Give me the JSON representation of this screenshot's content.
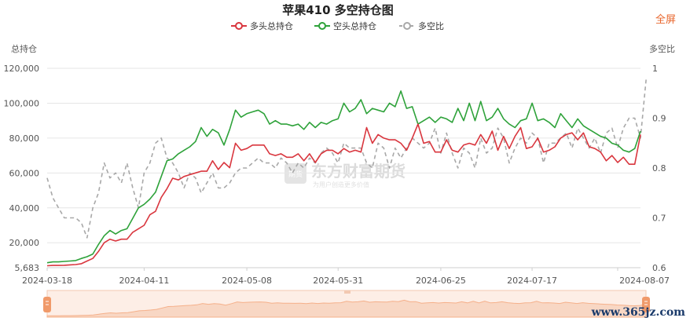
{
  "fullscreen_label": "全屏",
  "footer_url": "www.365jz.com",
  "watermark": {
    "main": "东方财富期货",
    "sub": "为用户创造更多价值",
    "logo": "期货"
  },
  "colors": {
    "long": "#d9363e",
    "short": "#2ea23a",
    "ratio": "#a8a8a8",
    "navigator": "#f5b08a"
  },
  "chart_data": {
    "type": "line",
    "title": "苹果410 多空持仓图",
    "legend": [
      "多头总持仓",
      "空头总持仓",
      "多空比"
    ],
    "y_left_label": "总持仓",
    "y_right_label": "多空比",
    "y_left_ticks": [
      "120,000",
      "100,000",
      "80,000",
      "60,000",
      "40,000",
      "20,000",
      "5,683"
    ],
    "y_left_tick_values": [
      120000,
      100000,
      80000,
      60000,
      40000,
      20000,
      5683
    ],
    "y_left_range": [
      5683,
      120000
    ],
    "y_right_ticks": [
      "1",
      "0.9",
      "0.8",
      "0.7",
      "0.6"
    ],
    "y_right_tick_values": [
      1,
      0.9,
      0.8,
      0.7,
      0.6
    ],
    "y_right_range": [
      0.6,
      1
    ],
    "x_ticks": [
      "2024-03-18",
      "2024-04-11",
      "2024-05-08",
      "2024-05-31",
      "2024-06-25",
      "2024-07-17",
      "2024-08-07"
    ],
    "x_tick_index": [
      0,
      17,
      35,
      51,
      69,
      85,
      100
    ],
    "series": [
      {
        "name": "多头总持仓",
        "values": [
          6800,
          7000,
          7000,
          7100,
          7300,
          7500,
          8000,
          9500,
          11000,
          15000,
          20000,
          22000,
          21000,
          22000,
          22000,
          26000,
          28000,
          30000,
          36000,
          38000,
          46000,
          51000,
          57000,
          56000,
          58000,
          59000,
          60000,
          61000,
          61000,
          67000,
          62000,
          66000,
          63000,
          77000,
          73000,
          74000,
          76000,
          76000,
          76000,
          71000,
          70000,
          71000,
          69000,
          69000,
          71000,
          67000,
          71000,
          66000,
          71000,
          73000,
          73000,
          71000,
          74000,
          72000,
          73000,
          72000,
          86000,
          77000,
          82000,
          80000,
          79000,
          79000,
          77000,
          73000,
          80000,
          88000,
          77000,
          78000,
          72000,
          72000,
          79000,
          73000,
          72000,
          76000,
          77000,
          76000,
          82000,
          77000,
          84000,
          73000,
          81000,
          74000,
          81000,
          86000,
          74000,
          75000,
          80000,
          72000,
          73000,
          75000,
          80000,
          82000,
          83000,
          79000,
          83000,
          75000,
          74000,
          72000,
          67000,
          70000,
          66000,
          69000,
          65000,
          65000,
          82000
        ]
      },
      {
        "name": "空头总持仓",
        "values": [
          8500,
          9000,
          9000,
          9300,
          9500,
          9800,
          11000,
          12000,
          13500,
          19000,
          24000,
          27000,
          25000,
          27000,
          28000,
          34000,
          40000,
          42000,
          45000,
          49000,
          58000,
          67000,
          68000,
          71000,
          73000,
          75000,
          78000,
          86000,
          81000,
          85000,
          83000,
          76000,
          85000,
          96000,
          92000,
          94000,
          95000,
          96000,
          94000,
          88000,
          90000,
          88000,
          88000,
          87000,
          88000,
          85000,
          89000,
          86000,
          89000,
          88000,
          90000,
          91000,
          100000,
          95000,
          97000,
          102000,
          94000,
          97000,
          96000,
          95000,
          100000,
          98000,
          107000,
          97000,
          98000,
          88000,
          90000,
          92000,
          89000,
          92000,
          91000,
          89000,
          97000,
          90000,
          100000,
          90000,
          101000,
          90000,
          92000,
          97000,
          91000,
          88000,
          86000,
          90000,
          91000,
          100000,
          90000,
          91000,
          89000,
          86000,
          94000,
          90000,
          86000,
          91000,
          87000,
          85000,
          83000,
          81000,
          80000,
          77000,
          76000,
          73000,
          72000,
          74000,
          84000
        ]
      },
      {
        "name": "多空比",
        "values": [
          0.78,
          0.74,
          0.72,
          0.7,
          0.7,
          0.7,
          0.69,
          0.66,
          0.72,
          0.75,
          0.81,
          0.78,
          0.79,
          0.77,
          0.81,
          0.76,
          0.72,
          0.79,
          0.81,
          0.85,
          0.86,
          0.82,
          0.81,
          0.79,
          0.76,
          0.79,
          0.78,
          0.75,
          0.77,
          0.79,
          0.76,
          0.76,
          0.77,
          0.79,
          0.8,
          0.8,
          0.81,
          0.82,
          0.81,
          0.81,
          0.8,
          0.82,
          0.81,
          0.79,
          0.81,
          0.8,
          0.82,
          0.81,
          0.83,
          0.84,
          0.83,
          0.81,
          0.85,
          0.84,
          0.84,
          0.84,
          0.81,
          0.8,
          0.85,
          0.84,
          0.8,
          0.84,
          0.82,
          0.84,
          0.86,
          0.85,
          0.84,
          0.85,
          0.88,
          0.83,
          0.87,
          0.83,
          0.8,
          0.84,
          0.83,
          0.8,
          0.86,
          0.83,
          0.84,
          0.88,
          0.86,
          0.81,
          0.84,
          0.86,
          0.85,
          0.87,
          0.86,
          0.81,
          0.85,
          0.85,
          0.86,
          0.87,
          0.84,
          0.88,
          0.86,
          0.84,
          0.86,
          0.83,
          0.87,
          0.88,
          0.84,
          0.88,
          0.9,
          0.9,
          0.86,
          0.98
        ]
      }
    ],
    "grid": "horizontal"
  }
}
